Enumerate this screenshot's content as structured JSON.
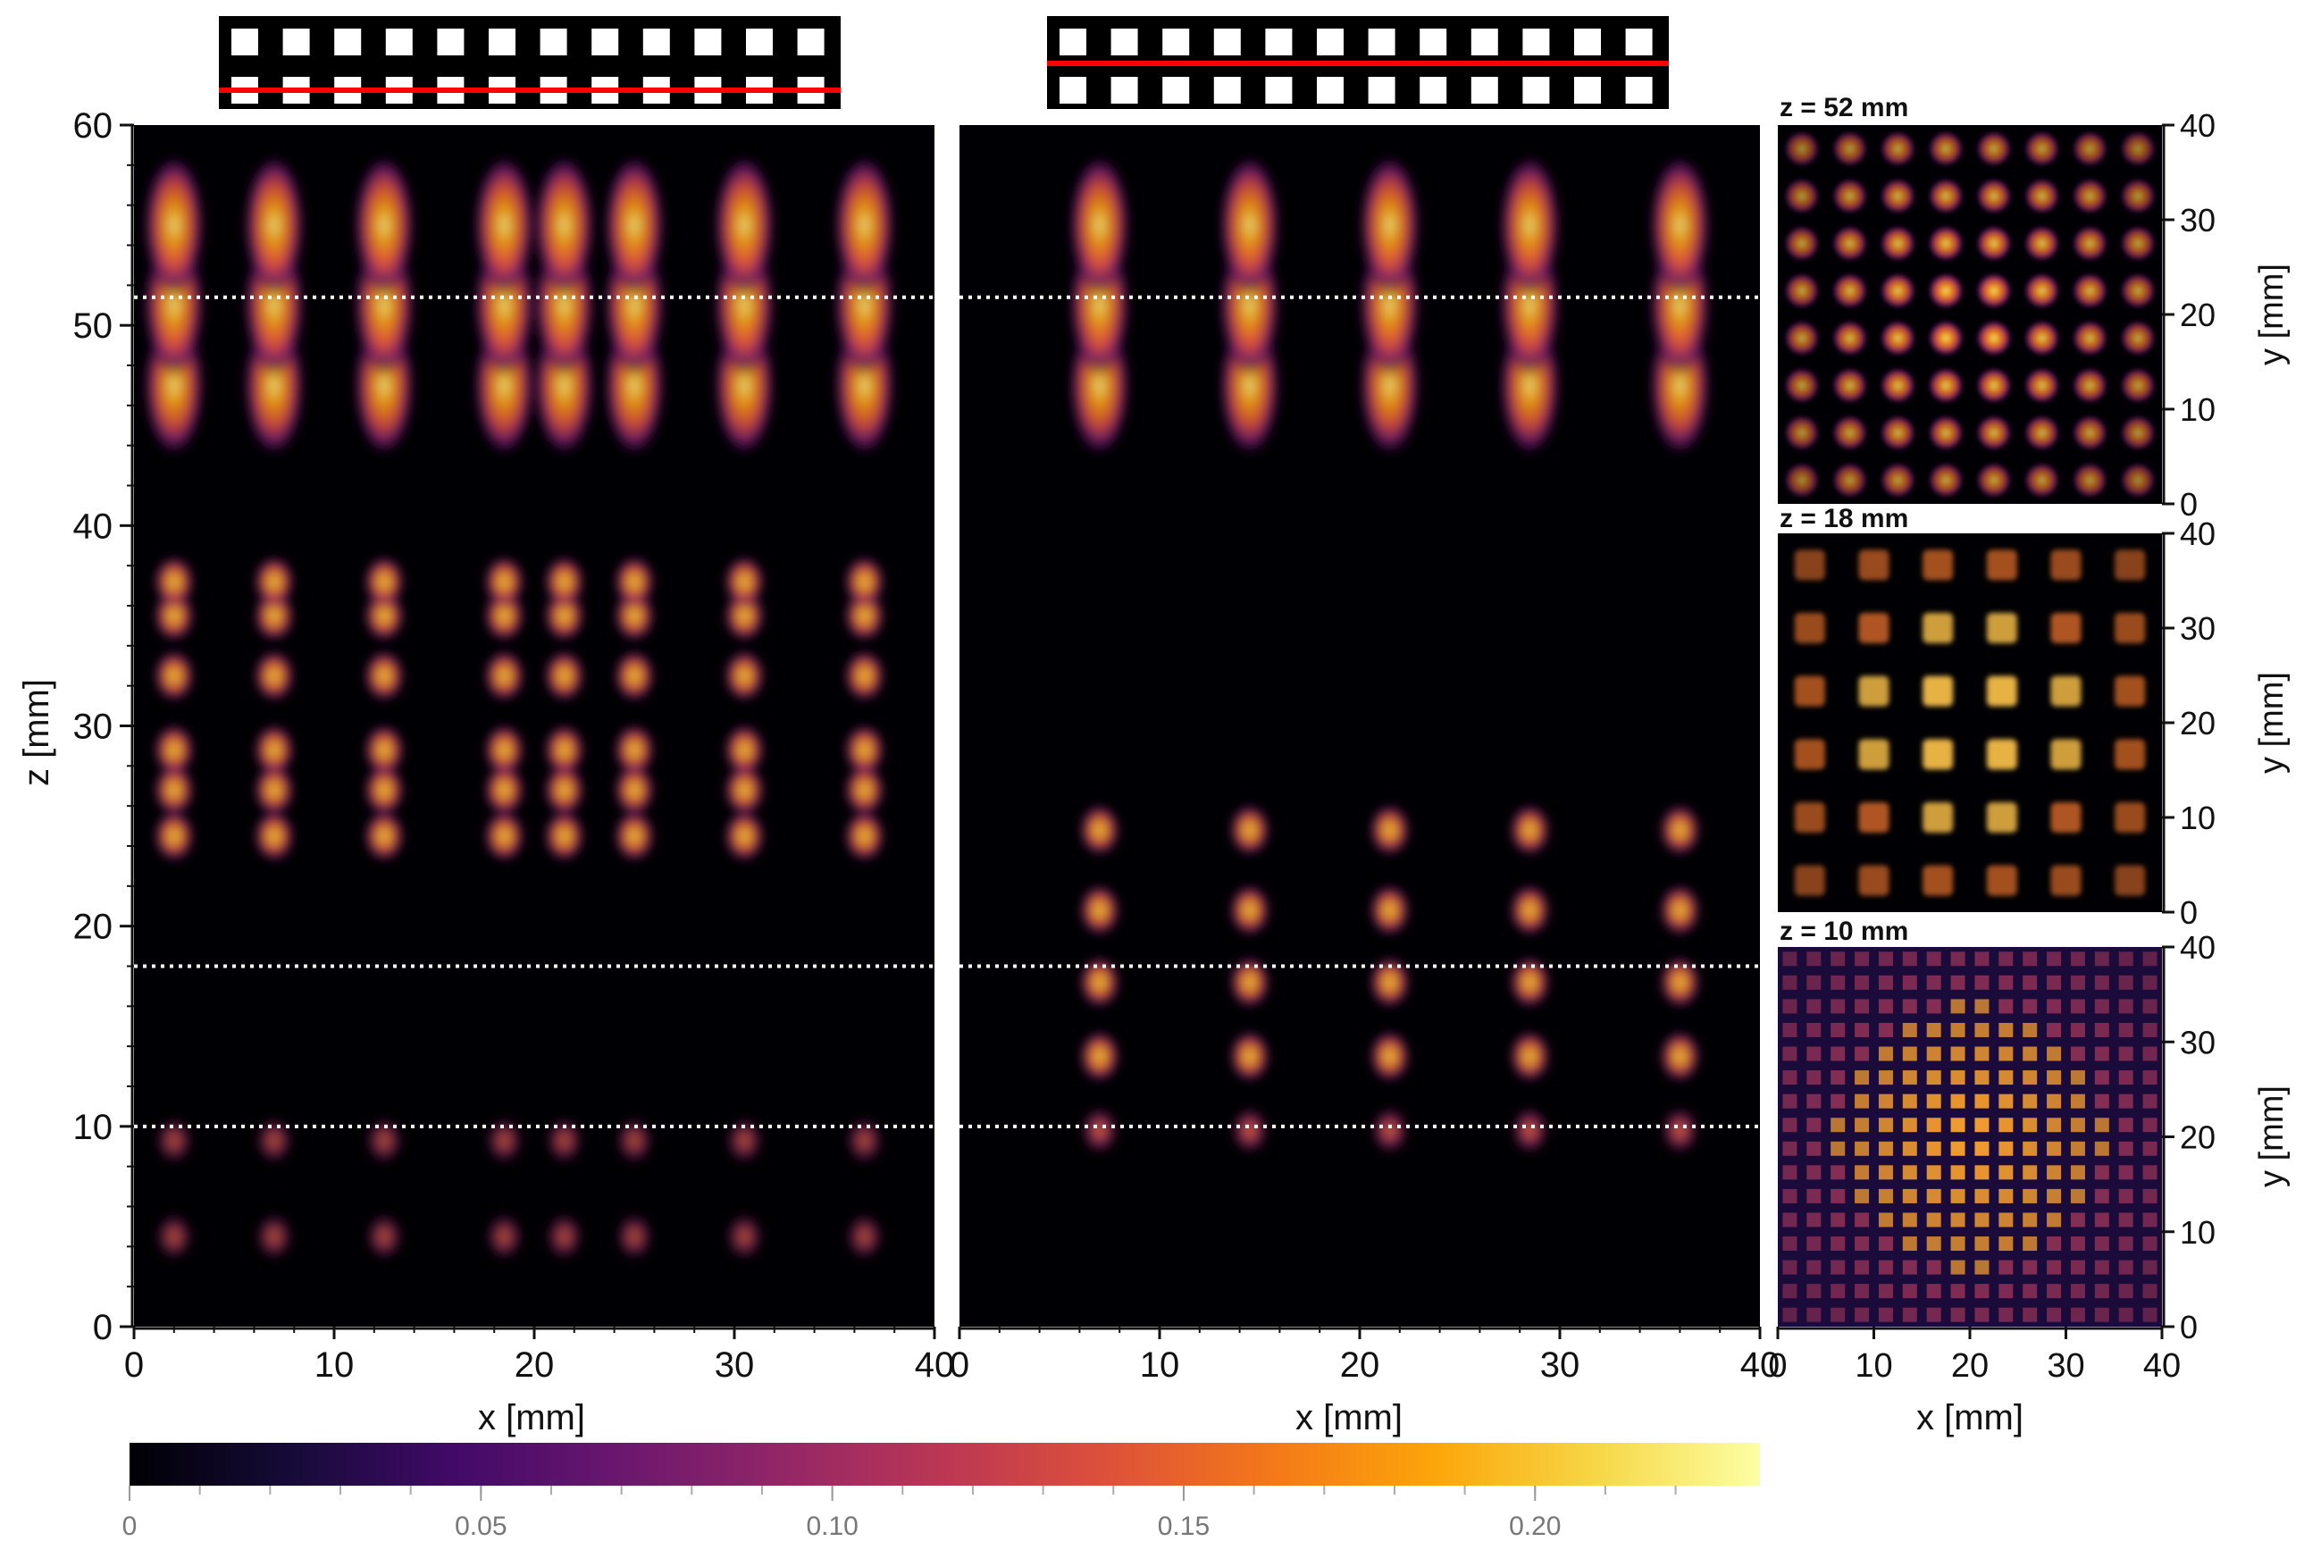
{
  "chart_data": [
    {
      "type": "heatmap",
      "id": "xz-left",
      "title": "",
      "xlabel": "x [mm]",
      "ylabel": "z [mm]",
      "xlim": [
        0,
        40
      ],
      "ylim": [
        0,
        60
      ],
      "xticks": [
        "0",
        "10",
        "20",
        "30",
        "40"
      ],
      "yticks": [
        "0",
        "10",
        "20",
        "30",
        "40",
        "50",
        "60"
      ],
      "xtick_values": [
        0,
        10,
        20,
        30,
        40
      ],
      "ytick_values": [
        0,
        10,
        20,
        30,
        40,
        50,
        60
      ],
      "dotted_lines_z": [
        10,
        18,
        51.4
      ],
      "inset_cut_row": "lower",
      "foci_z": [
        4.5,
        9.3,
        24.5,
        26.8,
        28.8,
        32.5,
        35.5,
        37.2,
        47,
        51,
        55
      ],
      "foci_x": [
        2,
        7,
        12.5,
        18.5,
        21.5,
        25,
        30.5,
        36.5
      ]
    },
    {
      "type": "heatmap",
      "id": "xz-middle",
      "title": "",
      "xlabel": "x [mm]",
      "ylabel": "",
      "xlim": [
        0,
        40
      ],
      "ylim": [
        0,
        60
      ],
      "xticks": [
        "0",
        "10",
        "20",
        "30",
        "40"
      ],
      "xtick_values": [
        0,
        10,
        20,
        30,
        40
      ],
      "dotted_lines_z": [
        10,
        18,
        51.4
      ],
      "inset_cut_row": "upper",
      "foci_z": [
        9.8,
        13.5,
        17.2,
        20.8,
        24.8,
        47,
        51,
        55
      ],
      "foci_x": [
        7,
        14.5,
        21.5,
        28.5,
        36
      ]
    },
    {
      "type": "heatmap",
      "id": "xy-z52",
      "title": "z = 52 mm",
      "xlabel": "",
      "ylabel": "y [mm]",
      "xlim": [
        0,
        40
      ],
      "ylim": [
        0,
        40
      ],
      "yticks": [
        "0",
        "10",
        "20",
        "30",
        "40"
      ],
      "ytick_values": [
        0,
        10,
        20,
        30,
        40
      ],
      "grid_n": 8
    },
    {
      "type": "heatmap",
      "id": "xy-z18",
      "title": "z = 18 mm",
      "xlabel": "",
      "ylabel": "y [mm]",
      "xlim": [
        0,
        40
      ],
      "ylim": [
        0,
        40
      ],
      "yticks": [
        "0",
        "10",
        "20",
        "30",
        "40"
      ],
      "ytick_values": [
        0,
        10,
        20,
        30,
        40
      ],
      "grid_n": 6
    },
    {
      "type": "heatmap",
      "id": "xy-z10",
      "title": "z = 10 mm",
      "xlabel": "x [mm]",
      "ylabel": "y [mm]",
      "xlim": [
        0,
        40
      ],
      "ylim": [
        0,
        40
      ],
      "xticks": [
        "0",
        "10",
        "20",
        "30",
        "40"
      ],
      "xtick_values": [
        0,
        10,
        20,
        30,
        40
      ],
      "yticks": [
        "0",
        "10",
        "20",
        "30",
        "40"
      ],
      "ytick_values": [
        0,
        10,
        20,
        30,
        40
      ],
      "grid_n": 16
    }
  ],
  "colorbar": {
    "colormap": "inferno",
    "range": [
      0,
      0.232
    ],
    "tick_values": [
      0,
      0.05,
      0.1,
      0.15,
      0.2
    ],
    "tick_labels": [
      "0",
      "0.05",
      "0.10",
      "0.15",
      "0.20"
    ]
  },
  "colors": {
    "cut_line": "#ff0000",
    "insert_background": "#000000",
    "insert_element": "#ffffff",
    "dotted_line": "#ffffff"
  },
  "array_inset": {
    "elements_per_row": 12,
    "rows": 2
  }
}
